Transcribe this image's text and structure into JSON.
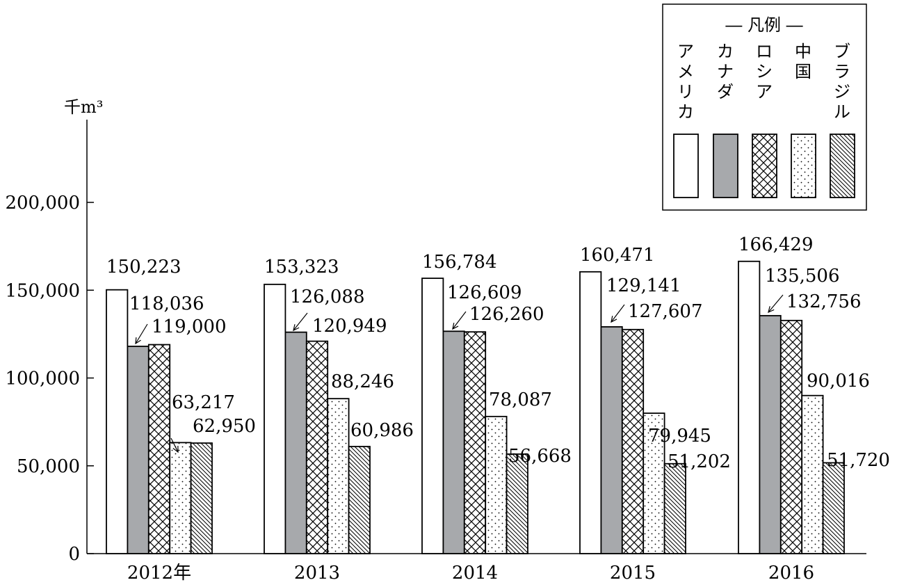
{
  "chart_data": {
    "type": "bar",
    "unit_label": "千m³",
    "categories": [
      "2012年",
      "2013",
      "2014",
      "2015",
      "2016"
    ],
    "ylim": [
      0,
      200000
    ],
    "yticks": [
      {
        "value": 0,
        "label": "0"
      },
      {
        "value": 50000,
        "label": "50,000"
      },
      {
        "value": 100000,
        "label": "100,000"
      },
      {
        "value": 150000,
        "label": "150,000"
      },
      {
        "value": 200000,
        "label": "200,000"
      }
    ],
    "legend_placement": "top-right",
    "legend_title": "― 凡例 ―",
    "series": [
      {
        "name": "アメリカ",
        "pattern": "white",
        "values": [
          150223,
          153323,
          156784,
          160471,
          166429
        ],
        "labels": [
          "150,223",
          "153,323",
          "156,784",
          "160,471",
          "166,429"
        ]
      },
      {
        "name": "カナダ",
        "pattern": "gray",
        "color": "#a7a9ac",
        "values": [
          118036,
          126088,
          126609,
          129141,
          135506
        ],
        "labels": [
          "118,036",
          "126,088",
          "126,609",
          "129,141",
          "135,506"
        ]
      },
      {
        "name": "ロシア",
        "pattern": "crosshatch",
        "values": [
          119000,
          120949,
          126260,
          127607,
          132756
        ],
        "labels": [
          "119,000",
          "120,949",
          "126,260",
          "127,607",
          "132,756"
        ]
      },
      {
        "name": "中国",
        "pattern": "dots",
        "values": [
          63217,
          88246,
          78087,
          79945,
          90016
        ],
        "labels": [
          "63,217",
          "88,246",
          "78,087",
          "79,945",
          "90,016"
        ]
      },
      {
        "name": "ブラジル",
        "pattern": "diagonal",
        "values": [
          62950,
          60986,
          56668,
          51202,
          51720
        ],
        "labels": [
          "62,950",
          "60,986",
          "56,668",
          "51,202",
          "51,720"
        ]
      }
    ]
  }
}
